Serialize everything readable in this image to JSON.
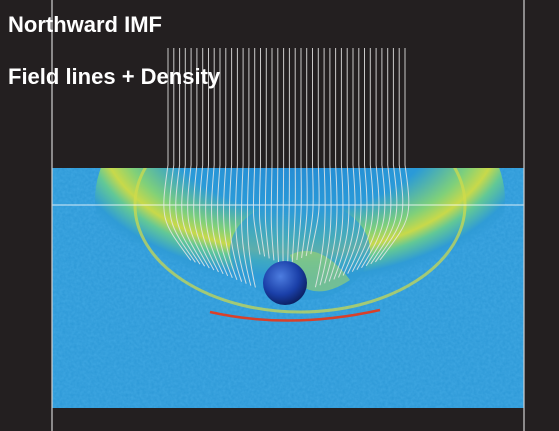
{
  "header": {
    "title": "Northward IMF",
    "subtitle": "Field lines + Density"
  }
}
